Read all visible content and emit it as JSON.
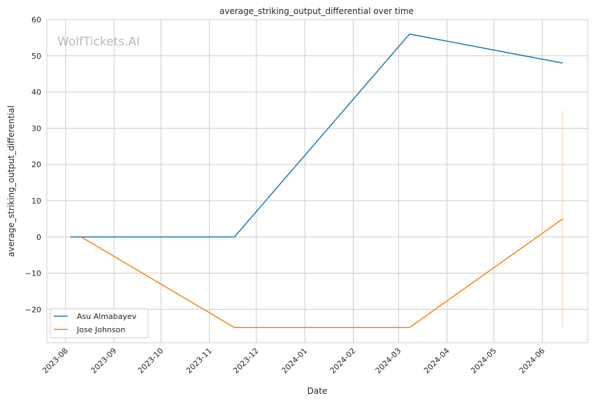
{
  "watermark": "WolfTickets.AI",
  "chart_data": {
    "type": "line",
    "title": "average_striking_output_differential over time",
    "xlabel": "Date",
    "ylabel": "average_striking_output_differential",
    "ylim": [
      -29.2,
      60
    ],
    "xlim": [
      "2023-07-20",
      "2024-06-30"
    ],
    "yticks": [
      -20,
      -10,
      0,
      10,
      20,
      30,
      40,
      50,
      60
    ],
    "ytick_labels": [
      "−20",
      "−10",
      "0",
      "10",
      "20",
      "30",
      "40",
      "50",
      "60"
    ],
    "xticks": [
      "2023-08-01",
      "2023-09-01",
      "2023-10-01",
      "2023-11-01",
      "2023-12-01",
      "2024-01-01",
      "2024-02-01",
      "2024-03-01",
      "2024-04-01",
      "2024-05-01",
      "2024-06-01"
    ],
    "xtick_labels": [
      "2023-08",
      "2023-09",
      "2023-10",
      "2023-11",
      "2023-12",
      "2024-01",
      "2024-02",
      "2024-03",
      "2024-04",
      "2024-05",
      "2024-06"
    ],
    "grid": true,
    "legend_position": "lower-left",
    "series": [
      {
        "name": "Asu Almabayev",
        "color": "#1f77b4",
        "x": [
          "2023-08-04",
          "2023-11-17",
          "2024-03-08",
          "2024-06-14"
        ],
        "y": [
          0,
          0,
          56,
          48
        ]
      },
      {
        "name": "Jose Johnson",
        "color": "#ff7f0e",
        "x": [
          "2023-08-11",
          "2023-11-17",
          "2024-03-08",
          "2024-06-14"
        ],
        "y": [
          0,
          -25,
          -25,
          5
        ],
        "ci": [
          {
            "x": "2024-06-14",
            "low": -25,
            "high": 35
          }
        ]
      }
    ]
  }
}
